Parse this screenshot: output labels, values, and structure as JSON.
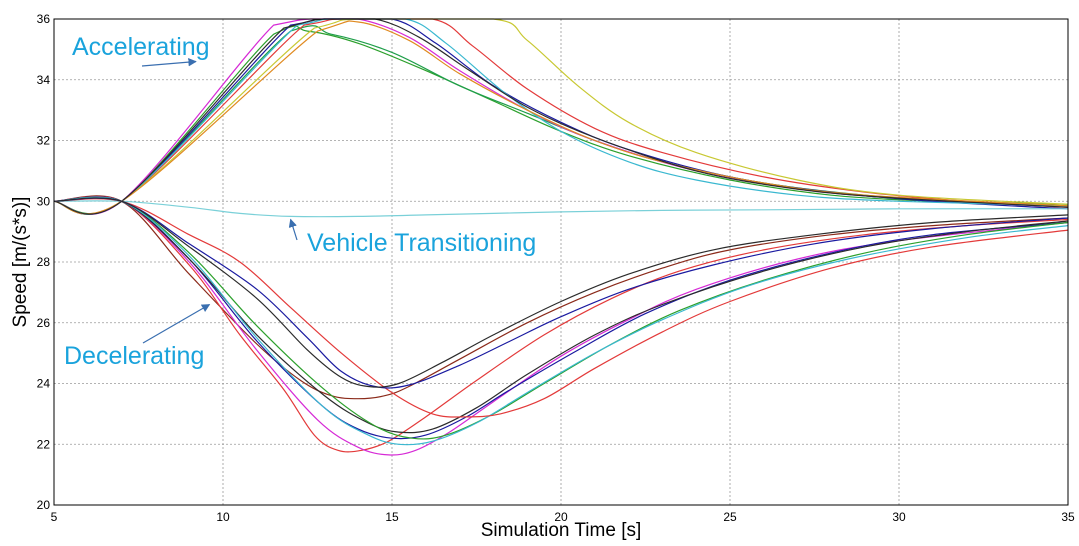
{
  "chart_data": {
    "type": "line",
    "title": "",
    "xlabel": "Simulation Time [s]",
    "ylabel": "Speed [m/(s*s)]",
    "xlim": [
      5,
      35
    ],
    "ylim": [
      20,
      36
    ],
    "xticks": [
      5,
      10,
      15,
      20,
      25,
      30,
      35
    ],
    "yticks": [
      20,
      22,
      24,
      26,
      28,
      30,
      32,
      34,
      36
    ],
    "grid": true,
    "legend": "none",
    "annotations": [
      {
        "text": "Accelerating",
        "target": [
          9.2,
          34.6
        ]
      },
      {
        "text": "Vehicle Transitioning",
        "target": [
          12.0,
          29.4
        ]
      },
      {
        "text": "Decelerating",
        "target": [
          9.6,
          26.6
        ]
      }
    ],
    "annotation_color": "#1aa3dc",
    "arrow_color": "#3a6fb0",
    "series": [
      {
        "color": "#2ca02c",
        "points": [
          [
            5,
            30
          ],
          [
            7,
            30
          ],
          [
            11.5,
            35.5
          ],
          [
            12.5,
            35.6
          ],
          [
            14,
            35.2
          ],
          [
            16,
            34.3
          ],
          [
            18,
            33.3
          ],
          [
            20,
            32.3
          ],
          [
            22,
            31.5
          ],
          [
            25,
            30.7
          ],
          [
            28,
            30.2
          ],
          [
            31,
            30.0
          ],
          [
            35,
            29.85
          ]
        ]
      },
      {
        "color": "#1f9e4a",
        "points": [
          [
            5,
            30
          ],
          [
            7,
            30
          ],
          [
            12,
            35.6
          ],
          [
            13.2,
            35.5
          ],
          [
            15,
            34.9
          ],
          [
            17,
            33.8
          ],
          [
            19,
            32.9
          ],
          [
            21,
            32.0
          ],
          [
            23,
            31.3
          ],
          [
            26,
            30.6
          ],
          [
            29,
            30.2
          ],
          [
            32,
            30.0
          ],
          [
            35,
            29.9
          ]
        ]
      },
      {
        "color": "#d62ad6",
        "points": [
          [
            5,
            30
          ],
          [
            7,
            30
          ],
          [
            11.5,
            35.8
          ],
          [
            12.6,
            36
          ],
          [
            14,
            36
          ],
          [
            15.5,
            35.4
          ],
          [
            17,
            34.3
          ],
          [
            19,
            33.0
          ],
          [
            21,
            32.0
          ],
          [
            24,
            31.0
          ],
          [
            27,
            30.4
          ],
          [
            30,
            30.1
          ],
          [
            35,
            29.8
          ]
        ]
      },
      {
        "color": "#1a1aa0",
        "points": [
          [
            5,
            30
          ],
          [
            7,
            30
          ],
          [
            12,
            35.8
          ],
          [
            13,
            36
          ],
          [
            15,
            36
          ],
          [
            16.3,
            35.2
          ],
          [
            18,
            33.8
          ],
          [
            20,
            32.6
          ],
          [
            22,
            31.7
          ],
          [
            25,
            30.8
          ],
          [
            28,
            30.3
          ],
          [
            31,
            30.0
          ],
          [
            35,
            29.75
          ]
        ]
      },
      {
        "color": "#e33a3a",
        "points": [
          [
            5,
            30
          ],
          [
            7,
            30
          ],
          [
            12.4,
            35.8
          ],
          [
            13.5,
            36
          ],
          [
            16.2,
            36
          ],
          [
            17.4,
            35.1
          ],
          [
            19,
            33.7
          ],
          [
            21,
            32.4
          ],
          [
            23,
            31.6
          ],
          [
            26,
            30.8
          ],
          [
            29,
            30.3
          ],
          [
            32,
            30.0
          ],
          [
            35,
            29.8
          ]
        ]
      },
      {
        "color": "#c8c832",
        "points": [
          [
            5,
            30
          ],
          [
            7,
            30
          ],
          [
            12.7,
            35.7
          ],
          [
            14,
            36
          ],
          [
            18,
            36
          ],
          [
            19,
            35.3
          ],
          [
            20.5,
            33.8
          ],
          [
            22,
            32.6
          ],
          [
            24,
            31.6
          ],
          [
            27,
            30.7
          ],
          [
            30,
            30.2
          ],
          [
            35,
            29.9
          ]
        ]
      },
      {
        "color": "#3ab8d0",
        "points": [
          [
            5,
            30
          ],
          [
            7,
            30
          ],
          [
            12.2,
            35.8
          ],
          [
            13.2,
            36
          ],
          [
            15.4,
            36
          ],
          [
            16.6,
            35.2
          ],
          [
            18.3,
            33.6
          ],
          [
            20,
            32.3
          ],
          [
            22,
            31.3
          ],
          [
            24,
            30.7
          ],
          [
            27,
            30.2
          ],
          [
            30,
            30.0
          ],
          [
            35,
            29.85
          ]
        ]
      },
      {
        "color": "#e08a20",
        "points": [
          [
            5,
            30
          ],
          [
            7,
            30
          ],
          [
            12.8,
            35.6
          ],
          [
            14,
            35.9
          ],
          [
            15.5,
            35.3
          ],
          [
            17,
            34.2
          ],
          [
            19,
            33.0
          ],
          [
            21,
            32.0
          ],
          [
            23,
            31.3
          ],
          [
            26,
            30.6
          ],
          [
            29,
            30.2
          ],
          [
            35,
            29.85
          ]
        ]
      },
      {
        "color": "#2b2b2b",
        "points": [
          [
            5,
            30
          ],
          [
            7,
            30
          ],
          [
            11.8,
            35.7
          ],
          [
            13,
            36
          ],
          [
            14.5,
            36
          ],
          [
            15.8,
            35.4
          ],
          [
            17.3,
            34.3
          ],
          [
            19,
            33.1
          ],
          [
            21,
            32.1
          ],
          [
            24,
            31.0
          ],
          [
            27,
            30.4
          ],
          [
            30,
            30.1
          ],
          [
            35,
            29.8
          ]
        ]
      },
      {
        "color": "#7ad0d8",
        "points": [
          [
            5,
            30
          ],
          [
            7,
            30
          ],
          [
            9,
            29.8
          ],
          [
            10.5,
            29.6
          ],
          [
            12,
            29.5
          ],
          [
            14,
            29.5
          ],
          [
            16,
            29.55
          ],
          [
            18,
            29.6
          ],
          [
            20,
            29.65
          ],
          [
            23,
            29.7
          ],
          [
            26,
            29.72
          ],
          [
            30,
            29.75
          ],
          [
            35,
            29.75
          ]
        ]
      },
      {
        "color": "#8b2a1a",
        "points": [
          [
            5,
            30
          ],
          [
            7,
            30
          ],
          [
            9,
            27.6
          ],
          [
            11,
            25.3
          ],
          [
            12.3,
            24.1
          ],
          [
            13.2,
            23.6
          ],
          [
            14,
            23.5
          ],
          [
            14.8,
            23.6
          ],
          [
            15.5,
            23.9
          ],
          [
            17,
            24.8
          ],
          [
            19,
            26.0
          ],
          [
            21,
            27.0
          ],
          [
            23,
            27.8
          ],
          [
            25,
            28.4
          ],
          [
            28,
            28.9
          ],
          [
            31,
            29.2
          ],
          [
            35,
            29.45
          ]
        ]
      },
      {
        "color": "#e33a3a",
        "points": [
          [
            5,
            30
          ],
          [
            7,
            30
          ],
          [
            9,
            27.9
          ],
          [
            10.5,
            25.6
          ],
          [
            11.8,
            23.8
          ],
          [
            12.7,
            22.3
          ],
          [
            13.4,
            21.8
          ],
          [
            14.1,
            21.8
          ],
          [
            14.9,
            22.1
          ],
          [
            16,
            22.9
          ],
          [
            17.5,
            24.1
          ],
          [
            19.5,
            25.6
          ],
          [
            21.5,
            26.8
          ],
          [
            23.5,
            27.7
          ],
          [
            26,
            28.4
          ],
          [
            29,
            28.9
          ],
          [
            32,
            29.2
          ],
          [
            35,
            29.4
          ]
        ]
      },
      {
        "color": "#d62ad6",
        "points": [
          [
            5,
            30
          ],
          [
            7,
            30
          ],
          [
            9,
            28.0
          ],
          [
            11,
            25.1
          ],
          [
            12.8,
            22.8
          ],
          [
            14,
            21.9
          ],
          [
            14.9,
            21.65
          ],
          [
            15.7,
            21.8
          ],
          [
            16.7,
            22.4
          ],
          [
            18,
            23.4
          ],
          [
            20,
            24.9
          ],
          [
            22,
            26.1
          ],
          [
            24,
            27.1
          ],
          [
            27,
            28.1
          ],
          [
            30,
            28.7
          ],
          [
            35,
            29.3
          ]
        ]
      },
      {
        "color": "#1a1aa0",
        "points": [
          [
            5,
            30
          ],
          [
            7,
            30
          ],
          [
            9,
            28.1
          ],
          [
            11,
            25.4
          ],
          [
            12.9,
            23.3
          ],
          [
            14,
            22.5
          ],
          [
            15,
            22.2
          ],
          [
            16,
            22.3
          ],
          [
            17.2,
            22.9
          ],
          [
            18.5,
            23.8
          ],
          [
            20.5,
            25.1
          ],
          [
            22.5,
            26.3
          ],
          [
            25,
            27.4
          ],
          [
            28,
            28.3
          ],
          [
            31,
            28.9
          ],
          [
            35,
            29.3
          ]
        ]
      },
      {
        "color": "#2b2b2b",
        "points": [
          [
            5,
            30
          ],
          [
            7,
            30
          ],
          [
            9,
            28.1
          ],
          [
            11,
            25.6
          ],
          [
            13,
            23.6
          ],
          [
            14.3,
            22.7
          ],
          [
            15.2,
            22.4
          ],
          [
            16.2,
            22.5
          ],
          [
            17.5,
            23.2
          ],
          [
            19,
            24.3
          ],
          [
            21,
            25.6
          ],
          [
            23,
            26.6
          ],
          [
            26,
            27.7
          ],
          [
            29,
            28.5
          ],
          [
            32,
            29.0
          ],
          [
            35,
            29.35
          ]
        ]
      },
      {
        "color": "#2ca02c",
        "points": [
          [
            5,
            30
          ],
          [
            7,
            30
          ],
          [
            9,
            28.3
          ],
          [
            11,
            25.9
          ],
          [
            13,
            23.8
          ],
          [
            14.5,
            22.6
          ],
          [
            15.6,
            22.2
          ],
          [
            16.6,
            22.3
          ],
          [
            18,
            23.0
          ],
          [
            19.5,
            24.0
          ],
          [
            21.5,
            25.3
          ],
          [
            23.5,
            26.4
          ],
          [
            26,
            27.4
          ],
          [
            29,
            28.3
          ],
          [
            32,
            28.9
          ],
          [
            35,
            29.3
          ]
        ]
      },
      {
        "color": "#3ab8d0",
        "points": [
          [
            5,
            30
          ],
          [
            7,
            30
          ],
          [
            9,
            28.2
          ],
          [
            11,
            25.5
          ],
          [
            13,
            23.2
          ],
          [
            14.3,
            22.3
          ],
          [
            15.2,
            22.0
          ],
          [
            16.2,
            22.1
          ],
          [
            17.5,
            22.7
          ],
          [
            19,
            23.7
          ],
          [
            21,
            25.0
          ],
          [
            23,
            26.1
          ],
          [
            25.5,
            27.2
          ],
          [
            28.5,
            28.1
          ],
          [
            32,
            28.8
          ],
          [
            35,
            29.2
          ]
        ]
      },
      {
        "color": "#e33a3a",
        "points": [
          [
            5,
            30
          ],
          [
            7,
            30
          ],
          [
            9,
            28.9
          ],
          [
            10.5,
            28.0
          ],
          [
            12,
            26.5
          ],
          [
            13.5,
            25.0
          ],
          [
            15,
            23.7
          ],
          [
            16.2,
            23.0
          ],
          [
            17.2,
            22.9
          ],
          [
            18.2,
            23.0
          ],
          [
            19.5,
            23.5
          ],
          [
            21,
            24.5
          ],
          [
            23,
            25.7
          ],
          [
            25,
            26.7
          ],
          [
            28,
            27.8
          ],
          [
            31,
            28.5
          ],
          [
            35,
            29.05
          ]
        ]
      },
      {
        "color": "#1a1aa0",
        "points": [
          [
            5,
            30
          ],
          [
            7,
            30
          ],
          [
            9,
            28.6
          ],
          [
            11,
            27.1
          ],
          [
            12.5,
            25.5
          ],
          [
            13.5,
            24.4
          ],
          [
            14.5,
            23.9
          ],
          [
            15.5,
            23.95
          ],
          [
            17,
            24.6
          ],
          [
            18.5,
            25.4
          ],
          [
            20,
            26.2
          ],
          [
            22,
            27.1
          ],
          [
            24.5,
            27.9
          ],
          [
            27.5,
            28.6
          ],
          [
            31,
            29.1
          ],
          [
            35,
            29.45
          ]
        ]
      },
      {
        "color": "#2b2b2b",
        "points": [
          [
            5,
            30
          ],
          [
            7,
            30
          ],
          [
            9,
            28.5
          ],
          [
            11,
            26.8
          ],
          [
            12.5,
            25.1
          ],
          [
            13.5,
            24.2
          ],
          [
            14.3,
            23.9
          ],
          [
            15.2,
            24.0
          ],
          [
            16.5,
            24.7
          ],
          [
            18,
            25.6
          ],
          [
            20,
            26.7
          ],
          [
            22,
            27.6
          ],
          [
            24.5,
            28.4
          ],
          [
            27.5,
            28.9
          ],
          [
            31,
            29.3
          ],
          [
            35,
            29.55
          ]
        ]
      }
    ]
  }
}
